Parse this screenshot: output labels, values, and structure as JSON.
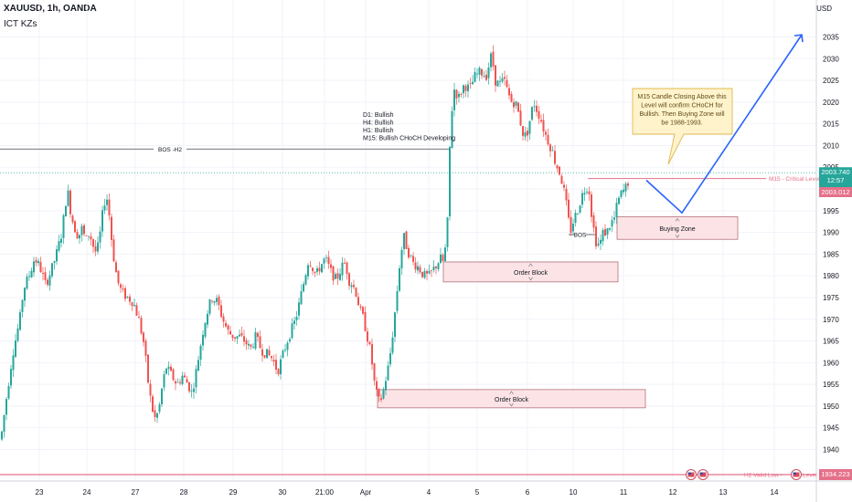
{
  "header": {
    "symbol_line": "XAUUSD, 1h, OANDA",
    "indicator": "ICT KZs",
    "currency": "USD"
  },
  "colors": {
    "up": "#26a69a",
    "down": "#ef5350",
    "grid": "#f0f3fa",
    "zone_fill": "#fce4e6",
    "zone_stroke": "#b5707a",
    "projection": "#2962ff",
    "critical": "#e5708a",
    "callout_fill": "#fff3cc",
    "callout_stroke": "#e0b94f"
  },
  "chart_data": {
    "type": "candlestick",
    "ylim": [
      1936,
      2040
    ],
    "y_ticks": [
      1940,
      1945,
      1950,
      1955,
      1960,
      1965,
      1970,
      1975,
      1980,
      1985,
      1990,
      1995,
      2000,
      2005,
      2010,
      2015,
      2020,
      2025,
      2030,
      2035
    ],
    "x_tick_labels": [
      "23",
      "24",
      "27",
      "28",
      "29",
      "30",
      "21:00",
      "Apr",
      "4",
      "5",
      "6",
      "10",
      "11",
      "12",
      "13",
      "14"
    ],
    "price_path": [
      [
        0,
        1941
      ],
      [
        3,
        1945
      ],
      [
        6,
        1950
      ],
      [
        10,
        1956
      ],
      [
        14,
        1962
      ],
      [
        18,
        1966
      ],
      [
        22,
        1970
      ],
      [
        26,
        1977
      ],
      [
        32,
        1980
      ],
      [
        38,
        1984
      ],
      [
        44,
        1982
      ],
      [
        50,
        1978
      ],
      [
        56,
        1981
      ],
      [
        62,
        1985
      ],
      [
        68,
        1990
      ],
      [
        72,
        1997
      ],
      [
        75,
        1999
      ],
      [
        78,
        1994
      ],
      [
        82,
        1991
      ],
      [
        86,
        1989
      ],
      [
        90,
        1991
      ],
      [
        94,
        1988
      ],
      [
        98,
        1990
      ],
      [
        102,
        1987
      ],
      [
        106,
        1985
      ],
      [
        110,
        1990
      ],
      [
        114,
        1997
      ],
      [
        118,
        1998
      ],
      [
        122,
        1989
      ],
      [
        126,
        1982
      ],
      [
        130,
        1978
      ],
      [
        134,
        1976
      ],
      [
        140,
        1975
      ],
      [
        146,
        1974
      ],
      [
        152,
        1970
      ],
      [
        158,
        1964
      ],
      [
        162,
        1956
      ],
      [
        166,
        1950
      ],
      [
        170,
        1947
      ],
      [
        174,
        1949
      ],
      [
        178,
        1955
      ],
      [
        182,
        1959
      ],
      [
        188,
        1957
      ],
      [
        194,
        1955
      ],
      [
        200,
        1957
      ],
      [
        206,
        1955
      ],
      [
        210,
        1953
      ],
      [
        214,
        1957
      ],
      [
        218,
        1962
      ],
      [
        222,
        1967
      ],
      [
        226,
        1971
      ],
      [
        232,
        1975
      ],
      [
        238,
        1974
      ],
      [
        244,
        1970
      ],
      [
        250,
        1967
      ],
      [
        256,
        1966
      ],
      [
        262,
        1966
      ],
      [
        268,
        1965
      ],
      [
        274,
        1963
      ],
      [
        280,
        1966
      ],
      [
        286,
        1963
      ],
      [
        292,
        1962
      ],
      [
        298,
        1961
      ],
      [
        304,
        1958
      ],
      [
        310,
        1962
      ],
      [
        316,
        1966
      ],
      [
        322,
        1969
      ],
      [
        326,
        1972
      ],
      [
        330,
        1976
      ],
      [
        334,
        1980
      ],
      [
        338,
        1984
      ],
      [
        342,
        1982
      ],
      [
        346,
        1980
      ],
      [
        350,
        1982
      ],
      [
        356,
        1984
      ],
      [
        362,
        1981
      ],
      [
        368,
        1979
      ],
      [
        374,
        1982
      ],
      [
        378,
        1983
      ],
      [
        382,
        1979
      ],
      [
        386,
        1978
      ],
      [
        390,
        1976
      ],
      [
        394,
        1972
      ],
      [
        398,
        1970
      ],
      [
        402,
        1966
      ],
      [
        406,
        1962
      ],
      [
        410,
        1955
      ],
      [
        414,
        1951
      ],
      [
        418,
        1952
      ],
      [
        422,
        1956
      ],
      [
        426,
        1960
      ],
      [
        430,
        1967
      ],
      [
        434,
        1975
      ],
      [
        438,
        1984
      ],
      [
        442,
        1989
      ],
      [
        446,
        1986
      ],
      [
        452,
        1983
      ],
      [
        458,
        1982
      ],
      [
        464,
        1980
      ],
      [
        470,
        1980
      ],
      [
        476,
        1982
      ],
      [
        482,
        1984
      ],
      [
        486,
        1983
      ],
      [
        490,
        1993
      ],
      [
        493,
        2015
      ],
      [
        497,
        2023
      ],
      [
        502,
        2021
      ],
      [
        508,
        2024
      ],
      [
        514,
        2023
      ],
      [
        520,
        2026
      ],
      [
        526,
        2027
      ],
      [
        532,
        2026
      ],
      [
        538,
        2031
      ],
      [
        542,
        2025
      ],
      [
        546,
        2024
      ],
      [
        552,
        2025
      ],
      [
        556,
        2022
      ],
      [
        560,
        2020
      ],
      [
        564,
        2020
      ],
      [
        568,
        2017
      ],
      [
        572,
        2013
      ],
      [
        576,
        2012
      ],
      [
        580,
        2016
      ],
      [
        584,
        2020
      ],
      [
        588,
        2018
      ],
      [
        592,
        2016
      ],
      [
        596,
        2013
      ],
      [
        600,
        2011
      ],
      [
        604,
        2009
      ],
      [
        608,
        2006
      ],
      [
        612,
        2004
      ],
      [
        616,
        2001
      ],
      [
        620,
        1996
      ],
      [
        624,
        1990
      ],
      [
        628,
        1993
      ],
      [
        632,
        1995
      ],
      [
        636,
        1998
      ],
      [
        640,
        2000
      ],
      [
        644,
        2001
      ],
      [
        648,
        1993
      ],
      [
        652,
        1988
      ],
      [
        656,
        1987
      ],
      [
        660,
        1990
      ],
      [
        664,
        1990
      ],
      [
        668,
        1992
      ],
      [
        672,
        1993
      ],
      [
        676,
        1997
      ],
      [
        680,
        1999
      ],
      [
        684,
        2000
      ],
      [
        688,
        2002
      ]
    ],
    "current_price": 2003.74,
    "countdown": "12:57",
    "second_price": 2003.012,
    "bottom_price": 1934.223,
    "levels": [
      {
        "name": "BOS -H2",
        "price": 2009.2,
        "x1": 0,
        "x2": 492
      },
      {
        "name": "M15 - Critical Level",
        "price": 2002.4,
        "x1": 643,
        "x2": 890
      },
      {
        "name": "BOS",
        "price": 1989.5,
        "x1": 622,
        "x2": 652
      }
    ],
    "zones": [
      {
        "name": "Order Block",
        "top": 1983.2,
        "bottom": 1978.6,
        "x1": 485,
        "x2": 676
      },
      {
        "name": "Buying Zone",
        "top": 1993.6,
        "bottom": 1988.4,
        "x1": 675,
        "x2": 807
      },
      {
        "name": "Order Block",
        "top": 1953.8,
        "bottom": 1949.6,
        "x1": 413,
        "x2": 706
      }
    ],
    "projection": [
      [
        707,
        2002
      ],
      [
        746,
        1994.5
      ],
      [
        877,
        2035.5
      ]
    ],
    "notes": {
      "bias": [
        "D1: Bullish",
        "H4: Bullish",
        "H1: Bullish",
        "M15: Bullish CHoCH Developing"
      ],
      "callout": [
        "M15 Candle Closing Above this",
        "Level will confirm CHoCH for",
        "Bullish. Then Buying Zone will",
        "be 1988-1993."
      ]
    },
    "bottom_tag": "H2 Valid Low - ",
    "bottom_tag_tail": "Level"
  }
}
